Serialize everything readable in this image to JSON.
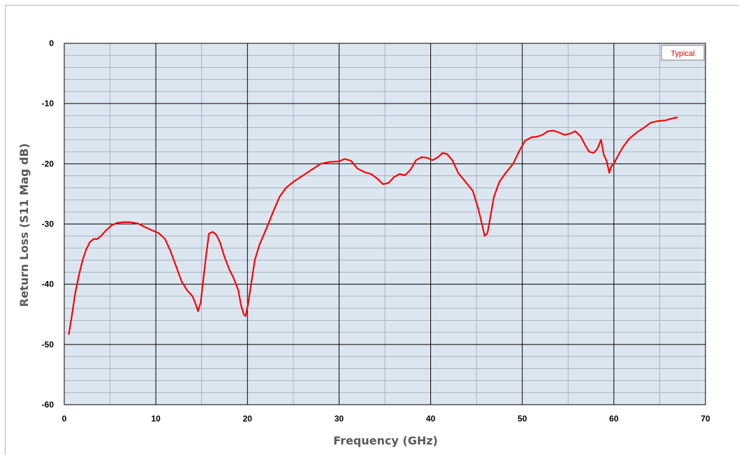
{
  "chart_data": {
    "type": "line",
    "title": "",
    "xlabel": "Frequency (GHz)",
    "ylabel": "Return Loss (S11 Mag dB)",
    "xlim": [
      0,
      70
    ],
    "ylim": [
      -60,
      0
    ],
    "x_ticks": [
      0,
      10,
      20,
      30,
      40,
      50,
      60,
      70
    ],
    "y_ticks": [
      0,
      -10,
      -20,
      -30,
      -40,
      -50,
      -60
    ],
    "x_minor_step": 5,
    "y_minor_step": 2,
    "grid": true,
    "legend": {
      "label": "Typical",
      "position": "top-right"
    },
    "colors": {
      "line": "#ff0000",
      "plot_bg": "#dce6f1",
      "major_grid": "#000000",
      "minor_grid": "#9aa7b5"
    },
    "series": [
      {
        "name": "Typical",
        "x": [
          0.5,
          0.8,
          1.2,
          1.6,
          2.0,
          2.4,
          2.8,
          3.2,
          3.6,
          4.0,
          4.6,
          5.2,
          5.8,
          6.5,
          7.2,
          8.0,
          8.8,
          9.5,
          10.3,
          11.0,
          11.6,
          12.2,
          12.8,
          13.4,
          14.0,
          14.4,
          14.6,
          14.9,
          15.2,
          15.5,
          15.8,
          16.2,
          16.6,
          17.0,
          17.5,
          18.0,
          18.5,
          19.0,
          19.3,
          19.6,
          19.8,
          20.1,
          20.4,
          20.8,
          21.3,
          22.0,
          22.8,
          23.5,
          24.2,
          25.0,
          26.0,
          27.0,
          28.0,
          29.0,
          30.0,
          30.6,
          31.3,
          32.0,
          32.8,
          33.5,
          34.2,
          34.8,
          35.4,
          36.0,
          36.6,
          37.2,
          37.8,
          38.4,
          39.0,
          39.6,
          40.2,
          40.8,
          41.3,
          41.8,
          42.4,
          43.0,
          43.8,
          44.6,
          45.2,
          45.6,
          45.9,
          46.2,
          46.5,
          46.9,
          47.5,
          48.2,
          49.0,
          49.7,
          50.3,
          51.0,
          51.6,
          52.2,
          52.8,
          53.4,
          54.0,
          54.6,
          55.2,
          55.8,
          56.4,
          56.9,
          57.3,
          57.8,
          58.2,
          58.6,
          58.9,
          59.2,
          59.5,
          59.7,
          60.0,
          60.4,
          61.0,
          61.7,
          62.5,
          63.3,
          64.0,
          64.8,
          65.6,
          66.3,
          66.9
        ],
        "y": [
          -48.3,
          -45.5,
          -41.5,
          -38.5,
          -36.0,
          -34.2,
          -33.0,
          -32.5,
          -32.5,
          -32.0,
          -31.0,
          -30.2,
          -29.8,
          -29.7,
          -29.7,
          -29.9,
          -30.5,
          -31.0,
          -31.5,
          -32.5,
          -34.5,
          -37.0,
          -39.5,
          -41.0,
          -42.0,
          -43.5,
          -44.5,
          -43.0,
          -39.0,
          -35.0,
          -31.6,
          -31.3,
          -31.8,
          -33.0,
          -35.5,
          -37.5,
          -39.0,
          -41.0,
          -43.5,
          -45.0,
          -45.3,
          -43.0,
          -40.0,
          -36.0,
          -33.5,
          -31.0,
          -28.0,
          -25.5,
          -24.0,
          -23.0,
          -22.0,
          -21.0,
          -20.0,
          -19.7,
          -19.6,
          -19.2,
          -19.5,
          -20.8,
          -21.4,
          -21.7,
          -22.5,
          -23.4,
          -23.2,
          -22.2,
          -21.7,
          -21.9,
          -21.0,
          -19.4,
          -18.9,
          -19.0,
          -19.4,
          -18.9,
          -18.2,
          -18.4,
          -19.5,
          -21.5,
          -23.0,
          -24.5,
          -27.5,
          -30.0,
          -32.0,
          -31.5,
          -29.0,
          -25.5,
          -23.0,
          -21.5,
          -20.0,
          -17.8,
          -16.2,
          -15.6,
          -15.5,
          -15.2,
          -14.6,
          -14.5,
          -14.8,
          -15.2,
          -15.0,
          -14.6,
          -15.5,
          -17.0,
          -18.0,
          -18.2,
          -17.5,
          -16.0,
          -18.5,
          -19.5,
          -21.5,
          -20.5,
          -20.0,
          -18.8,
          -17.2,
          -15.8,
          -14.8,
          -14.0,
          -13.2,
          -12.9,
          -12.8,
          -12.5,
          -12.3
        ]
      }
    ]
  }
}
